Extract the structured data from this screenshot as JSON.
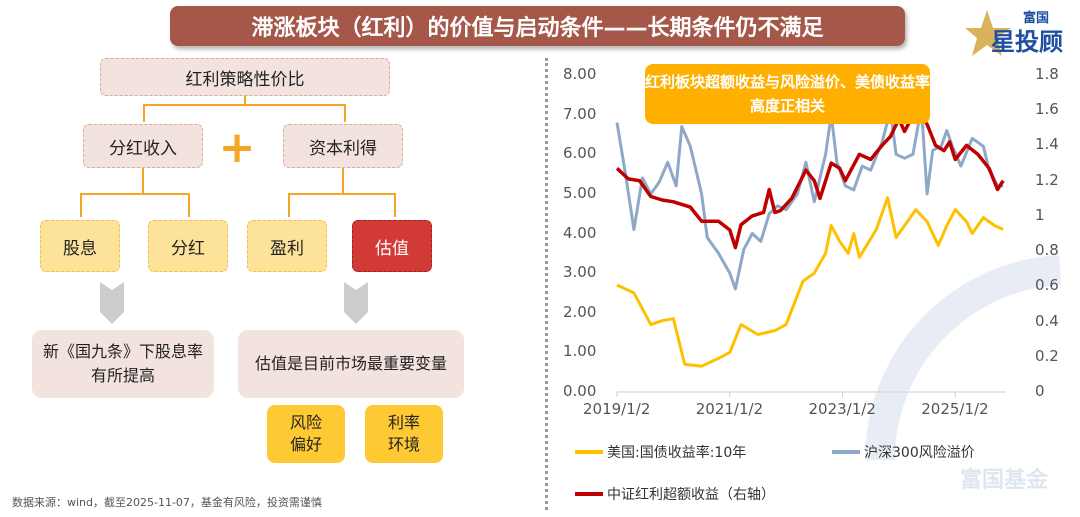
{
  "title": "滞涨板块（红利）的价值与启动条件——长期条件仍不满足",
  "logo": {
    "text_top": "富国",
    "text_main": "星投顾",
    "watermark": "富国基金"
  },
  "diagram": {
    "root": "红利策略性价比",
    "plus": "+",
    "level1": [
      "分红收入",
      "资本利得"
    ],
    "level2": [
      "股息",
      "分红",
      "盈利",
      "估值"
    ],
    "note_left": "新《国九条》下股息率有所提高",
    "note_right": "估值是目前市场最重要变量",
    "factors": [
      "风险偏好",
      "利率环境"
    ]
  },
  "source": "数据来源：wind，截至2025-11-07，基金有风险，投资需谨慎",
  "chart_data": {
    "type": "line",
    "callout": "红利板块超额收益与风险溢价、美债收益率高度正相关",
    "x_ticks": [
      "2019/1/2",
      "2021/1/2",
      "2023/1/2",
      "2025/1/2"
    ],
    "y_left_ticks": [
      "8.00",
      "7.00",
      "6.00",
      "5.00",
      "4.00",
      "3.00",
      "2.00",
      "1.00",
      "0.00"
    ],
    "y_right_ticks": [
      "1.8",
      "1.6",
      "1.4",
      "1.2",
      "1",
      "0.8",
      "0.6",
      "0.4",
      "0.2",
      "0"
    ],
    "ylim_left": [
      0,
      8
    ],
    "ylim_right": [
      0,
      1.8
    ],
    "xlim": [
      2019.0,
      2025.9
    ],
    "series": [
      {
        "name": "美国:国债收益率:10年",
        "axis": "left",
        "color": "#ffc000",
        "x": [
          2019.0,
          2019.3,
          2019.6,
          2019.8,
          2020.0,
          2020.2,
          2020.5,
          2020.8,
          2021.0,
          2021.2,
          2021.5,
          2021.8,
          2022.0,
          2022.3,
          2022.5,
          2022.7,
          2022.8,
          2022.95,
          2023.1,
          2023.2,
          2023.3,
          2023.6,
          2023.8,
          2023.95,
          2024.1,
          2024.3,
          2024.5,
          2024.7,
          2024.85,
          2025.0,
          2025.2,
          2025.3,
          2025.5,
          2025.7,
          2025.85
        ],
        "y": [
          2.7,
          2.5,
          1.7,
          1.8,
          1.85,
          0.7,
          0.65,
          0.85,
          1.0,
          1.7,
          1.45,
          1.55,
          1.7,
          2.8,
          3.0,
          3.5,
          4.2,
          3.8,
          3.5,
          4.0,
          3.4,
          4.1,
          4.9,
          3.9,
          4.2,
          4.6,
          4.3,
          3.7,
          4.2,
          4.6,
          4.3,
          4.0,
          4.4,
          4.2,
          4.1
        ]
      },
      {
        "name": "沪深300风险溢价",
        "axis": "left",
        "color": "#8ea9c8",
        "x": [
          2019.0,
          2019.15,
          2019.3,
          2019.45,
          2019.6,
          2019.75,
          2019.9,
          2020.05,
          2020.15,
          2020.3,
          2020.5,
          2020.6,
          2020.8,
          2021.0,
          2021.1,
          2021.25,
          2021.4,
          2021.55,
          2021.7,
          2021.85,
          2022.0,
          2022.2,
          2022.35,
          2022.5,
          2022.7,
          2022.8,
          2022.9,
          2023.05,
          2023.2,
          2023.35,
          2023.5,
          2023.7,
          2023.85,
          2023.95,
          2024.1,
          2024.25,
          2024.4,
          2024.5,
          2024.6,
          2024.75,
          2024.85,
          2024.95,
          2025.1,
          2025.3,
          2025.5,
          2025.6,
          2025.75,
          2025.85
        ],
        "y": [
          6.8,
          5.5,
          4.1,
          5.4,
          5.0,
          5.3,
          5.8,
          5.2,
          6.7,
          6.2,
          5.0,
          3.9,
          3.5,
          3.0,
          2.6,
          3.6,
          4.0,
          3.8,
          4.5,
          4.7,
          4.6,
          5.0,
          5.8,
          4.8,
          6.0,
          7.0,
          5.8,
          5.2,
          5.1,
          5.7,
          5.6,
          6.3,
          7.1,
          6.0,
          5.9,
          6.0,
          7.2,
          5.0,
          6.1,
          6.2,
          6.6,
          6.2,
          5.7,
          6.4,
          6.2,
          5.6,
          5.2,
          5.2
        ]
      },
      {
        "name": "中证红利超额收益（右轴）",
        "axis": "right",
        "color": "#c00000",
        "x": [
          2019.0,
          2019.2,
          2019.4,
          2019.6,
          2019.8,
          2020.0,
          2020.3,
          2020.5,
          2020.8,
          2021.0,
          2021.1,
          2021.2,
          2021.4,
          2021.6,
          2021.7,
          2021.8,
          2021.9,
          2022.1,
          2022.35,
          2022.5,
          2022.6,
          2022.8,
          2022.95,
          2023.05,
          2023.3,
          2023.5,
          2023.7,
          2023.85,
          2024.0,
          2024.1,
          2024.3,
          2024.5,
          2024.65,
          2024.8,
          2024.9,
          2025.0,
          2025.2,
          2025.4,
          2025.6,
          2025.75,
          2025.85
        ],
        "y": [
          1.27,
          1.21,
          1.2,
          1.11,
          1.09,
          1.08,
          1.05,
          0.97,
          0.97,
          0.92,
          0.82,
          0.95,
          1.0,
          1.02,
          1.15,
          1.02,
          1.03,
          1.1,
          1.26,
          1.2,
          1.1,
          1.3,
          1.27,
          1.2,
          1.35,
          1.32,
          1.4,
          1.45,
          1.55,
          1.48,
          1.6,
          1.52,
          1.4,
          1.37,
          1.42,
          1.32,
          1.4,
          1.35,
          1.27,
          1.15,
          1.2
        ]
      }
    ]
  }
}
